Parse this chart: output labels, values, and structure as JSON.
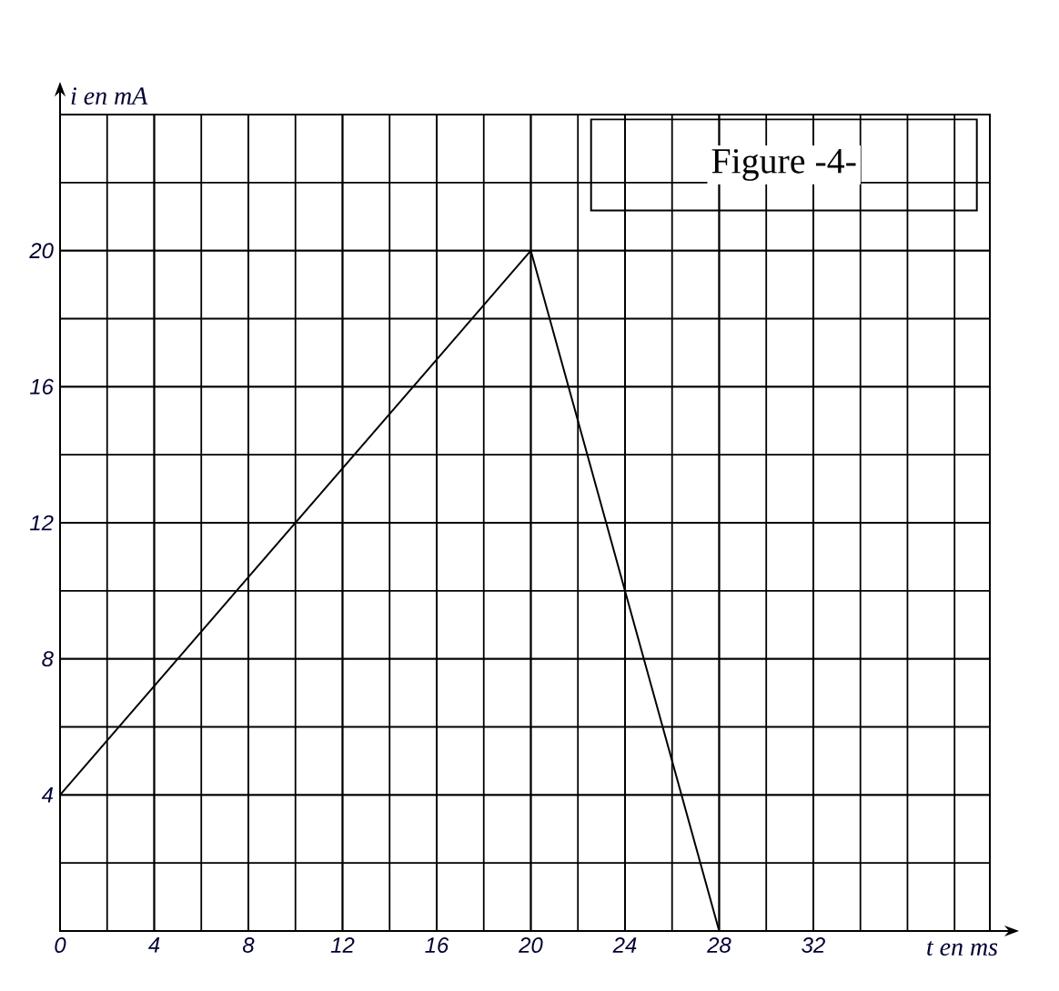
{
  "chart_data": {
    "type": "line",
    "xlabel": "t en ms",
    "ylabel": "i en mA",
    "annotations": [
      "Figure -4-"
    ],
    "x": [
      0,
      20,
      28
    ],
    "values": [
      4,
      20,
      0
    ],
    "color": "#000000",
    "xlim": [
      0,
      39.5
    ],
    "ylim": [
      0,
      24
    ],
    "xticks": [
      0,
      4,
      8,
      12,
      16,
      20,
      24,
      28,
      32
    ],
    "yticks": [
      4,
      8,
      12,
      16,
      20
    ],
    "grid": true,
    "marker": "none",
    "line_style": "solid"
  }
}
